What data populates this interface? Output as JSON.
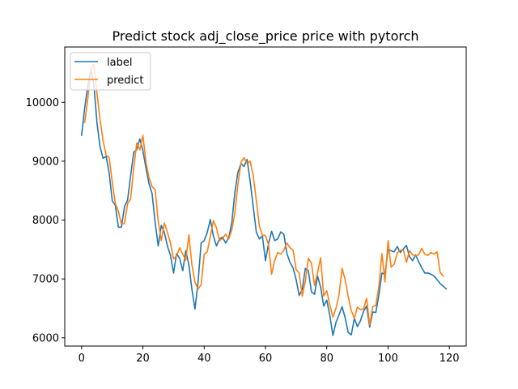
{
  "chart_data": {
    "type": "line",
    "title": "Predict stock adj_close_price price with pytorch",
    "xlabel": "",
    "ylabel": "",
    "xlim": [
      -5.5,
      125.5
    ],
    "ylim": [
      5860,
      10940
    ],
    "xticks": [
      0,
      20,
      40,
      60,
      80,
      100,
      120
    ],
    "yticks": [
      6000,
      7000,
      8000,
      9000,
      10000
    ],
    "grid": false,
    "legend_position": "top-left",
    "series": [
      {
        "name": "label",
        "color": "#1f77b4",
        "x_start": 0,
        "values": [
          9440,
          9900,
          10270,
          10560,
          10300,
          9660,
          9250,
          9050,
          9080,
          8800,
          8330,
          8250,
          7880,
          7880,
          8230,
          8340,
          8750,
          9150,
          9200,
          9380,
          9180,
          8880,
          8620,
          8450,
          7960,
          7560,
          7910,
          7790,
          7560,
          7400,
          7100,
          7430,
          7350,
          7140,
          7480,
          7240,
          6820,
          6490,
          6940,
          7610,
          7650,
          7790,
          8010,
          7730,
          7560,
          7680,
          7710,
          7610,
          7700,
          7950,
          8460,
          8810,
          8960,
          8910,
          9030,
          8660,
          8230,
          7800,
          7680,
          7730,
          7310,
          7600,
          7810,
          7650,
          7680,
          7800,
          7760,
          7430,
          7280,
          7190,
          6990,
          6720,
          6820,
          7180,
          7140,
          6780,
          6740,
          7050,
          6860,
          6540,
          6640,
          6380,
          6040,
          6260,
          6390,
          6530,
          6340,
          6090,
          6050,
          6330,
          6190,
          6290,
          6450,
          6540,
          6180,
          6440,
          6430,
          6720,
          7100,
          7080,
          7500,
          7480,
          7460,
          7550,
          7450,
          7510,
          7570,
          7380,
          7310,
          7410,
          7290,
          7190,
          7100,
          7100,
          7080,
          7050,
          6990,
          6920,
          6880,
          6830
        ]
      },
      {
        "name": "predict",
        "color": "#ff7f0e",
        "x_start": 1,
        "values": [
          9660,
          10050,
          10550,
          10650,
          10160,
          9710,
          9350,
          9100,
          9060,
          8650,
          8280,
          8150,
          7930,
          7940,
          8280,
          8360,
          8880,
          9310,
          9190,
          9440,
          8980,
          8720,
          8570,
          8510,
          7980,
          7650,
          7950,
          7790,
          7610,
          7340,
          7390,
          7530,
          7420,
          7320,
          7750,
          7240,
          6940,
          6830,
          6900,
          7420,
          7460,
          7720,
          7990,
          7870,
          7650,
          7690,
          7760,
          7680,
          7830,
          8120,
          8600,
          8980,
          9060,
          8960,
          9000,
          8750,
          8340,
          7900,
          7740,
          7740,
          7580,
          7080,
          7310,
          7450,
          7420,
          7490,
          7610,
          7530,
          7490,
          7160,
          7100,
          6710,
          6960,
          7350,
          7270,
          6890,
          7110,
          7360,
          6710,
          6800,
          6560,
          6350,
          6500,
          6730,
          7180,
          6990,
          6700,
          6460,
          6330,
          6520,
          6480,
          6490,
          6670,
          6220,
          6530,
          6550,
          6870,
          7430,
          6950,
          7650,
          7200,
          7250,
          7440,
          7490,
          7490,
          7280,
          7480,
          7410,
          7390,
          7410,
          7520,
          7420,
          7400,
          7450,
          7420,
          7460,
          7110,
          7050
        ]
      }
    ]
  }
}
